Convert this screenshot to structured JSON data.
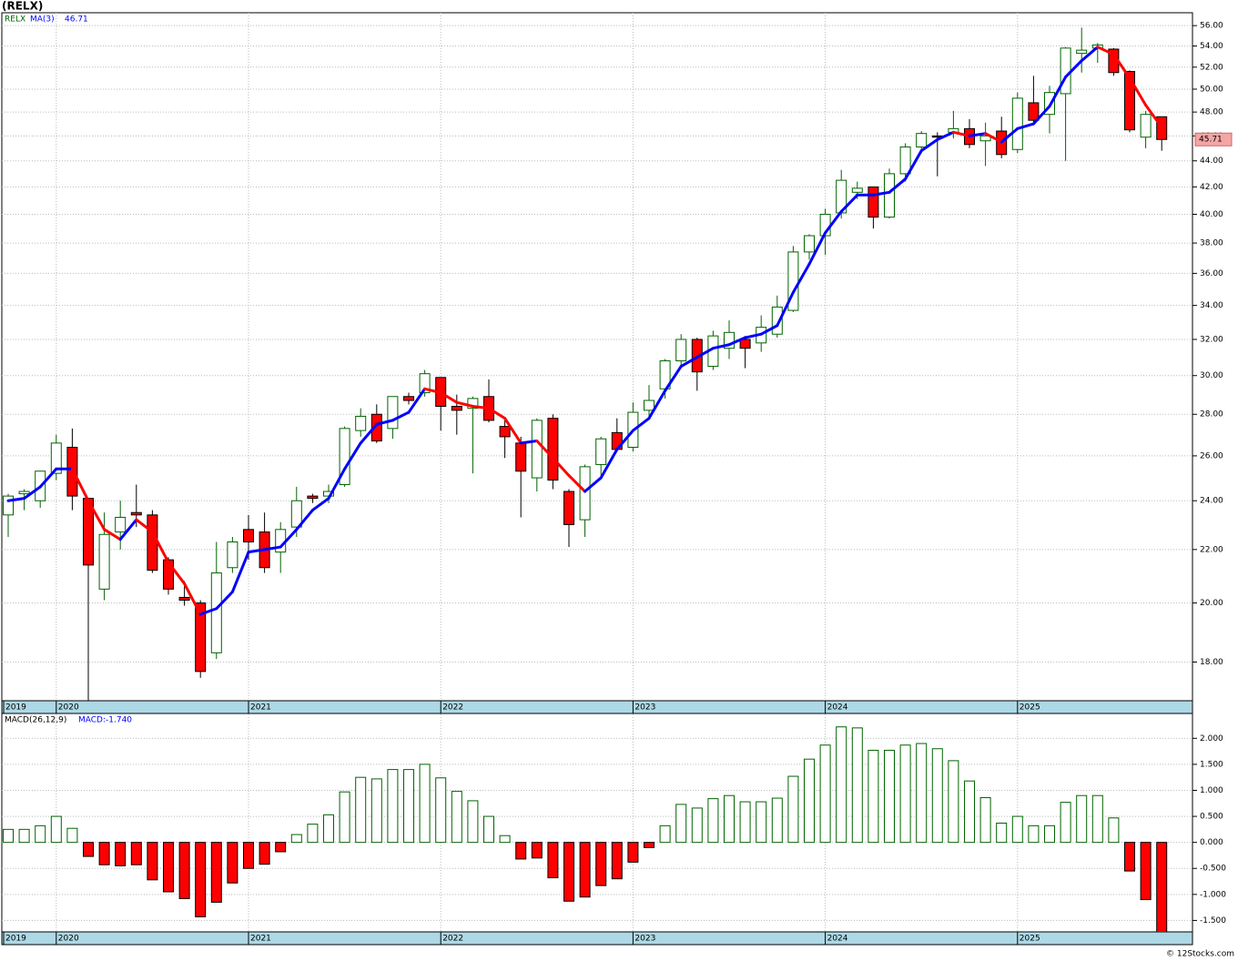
{
  "chart_data": [
    {
      "type": "candlestick",
      "title": "(RELX)",
      "log_scale": true,
      "grid": true,
      "categories": [
        "2019",
        null,
        null,
        "2020",
        null,
        null,
        null,
        null,
        null,
        null,
        null,
        null,
        null,
        null,
        null,
        "2021",
        null,
        null,
        null,
        null,
        null,
        null,
        null,
        null,
        null,
        null,
        null,
        "2022",
        null,
        null,
        null,
        null,
        null,
        null,
        null,
        null,
        null,
        null,
        null,
        "2023",
        null,
        null,
        null,
        null,
        null,
        null,
        null,
        null,
        null,
        null,
        null,
        "2024",
        null,
        null,
        null,
        null,
        null,
        null,
        null,
        null,
        null,
        null,
        null,
        "2025",
        null,
        null,
        null,
        null,
        null,
        null,
        null,
        null,
        null
      ],
      "series": [
        {
          "name": "RELX",
          "up_color": "#006400",
          "down_color": "#ff0000",
          "open": [
            23.4,
            24.3,
            24.0,
            25.2,
            26.4,
            24.1,
            20.5,
            22.7,
            23.5,
            23.4,
            21.6,
            20.2,
            20.0,
            18.3,
            21.3,
            22.8,
            22.7,
            21.9,
            22.9,
            24.2,
            24.2,
            24.7,
            27.2,
            28.0,
            27.3,
            28.9,
            29.1,
            29.9,
            28.4,
            28.3,
            28.9,
            27.4,
            26.6,
            25.0,
            27.8,
            24.4,
            23.2,
            25.6,
            27.1,
            26.4,
            28.2,
            29.3,
            30.8,
            32.0,
            30.5,
            31.5,
            32.0,
            31.8,
            32.3,
            33.7,
            37.4,
            38.5,
            40.1,
            41.6,
            42.0,
            39.8,
            43.0,
            45.1,
            46.0,
            46.3,
            46.6,
            45.6,
            46.4,
            44.9,
            48.8,
            47.8,
            49.6,
            53.3,
            53.8,
            53.7,
            51.6,
            45.9,
            47.6
          ],
          "high": [
            24.3,
            24.5,
            25.3,
            27.0,
            27.3,
            24.1,
            23.5,
            24.0,
            24.7,
            23.6,
            21.7,
            20.8,
            20.1,
            22.3,
            22.5,
            23.4,
            23.5,
            23.1,
            24.6,
            24.3,
            24.7,
            27.4,
            28.3,
            28.5,
            28.9,
            29.1,
            30.3,
            29.9,
            29.0,
            28.9,
            29.8,
            27.7,
            26.9,
            27.8,
            28.0,
            24.5,
            25.6,
            26.9,
            27.8,
            28.6,
            29.5,
            30.9,
            32.3,
            32.1,
            32.5,
            33.1,
            32.2,
            33.4,
            34.6,
            37.8,
            38.6,
            40.4,
            43.3,
            42.4,
            42.0,
            43.4,
            45.4,
            46.4,
            46.3,
            48.1,
            47.4,
            47.1,
            47.6,
            49.7,
            51.2,
            50.3,
            53.9,
            55.8,
            54.3,
            53.8,
            51.7,
            48.1,
            47.6
          ],
          "low": [
            22.5,
            23.6,
            23.7,
            24.9,
            23.6,
            16.8,
            20.1,
            22.0,
            22.9,
            21.1,
            20.3,
            19.9,
            17.5,
            18.1,
            21.1,
            21.6,
            21.1,
            21.1,
            22.5,
            23.9,
            23.9,
            24.6,
            26.9,
            26.6,
            26.8,
            28.5,
            28.9,
            27.2,
            27.0,
            25.2,
            27.6,
            25.9,
            23.3,
            24.4,
            24.5,
            22.1,
            22.5,
            25.0,
            26.2,
            26.2,
            27.9,
            28.8,
            30.5,
            29.2,
            30.3,
            30.9,
            30.4,
            31.3,
            32.1,
            33.6,
            36.9,
            37.2,
            39.7,
            41.1,
            39.0,
            39.7,
            42.4,
            44.6,
            42.8,
            45.8,
            45.0,
            43.6,
            44.2,
            44.6,
            47.1,
            46.2,
            44.0,
            51.5,
            52.4,
            51.2,
            46.3,
            45.0,
            44.8
          ],
          "close": [
            24.2,
            24.4,
            25.3,
            26.6,
            24.2,
            21.4,
            22.6,
            23.3,
            23.4,
            21.2,
            20.5,
            20.1,
            17.7,
            21.1,
            22.3,
            22.3,
            21.3,
            22.8,
            24.0,
            24.1,
            24.4,
            27.3,
            27.9,
            26.7,
            28.9,
            28.7,
            30.1,
            28.4,
            28.2,
            28.8,
            27.7,
            26.9,
            25.3,
            27.7,
            24.9,
            23.0,
            25.5,
            26.8,
            26.3,
            28.1,
            28.7,
            30.8,
            32.0,
            30.2,
            32.2,
            32.4,
            31.5,
            32.7,
            33.9,
            37.4,
            38.5,
            40.0,
            42.5,
            41.9,
            39.8,
            43.0,
            45.1,
            46.2,
            45.9,
            46.6,
            45.3,
            46.0,
            44.5,
            49.2,
            47.3,
            49.7,
            53.8,
            53.6,
            54.1,
            51.5,
            46.5,
            47.8,
            45.71
          ]
        }
      ],
      "ma": {
        "name": "MA(3)",
        "up_color": "#0000ff",
        "down_color": "#ff0000",
        "values": [
          24.0,
          24.1,
          24.6,
          25.4,
          25.4,
          24.0,
          22.8,
          22.4,
          23.2,
          22.7,
          21.5,
          20.7,
          19.6,
          19.8,
          20.4,
          21.9,
          22.0,
          22.1,
          22.8,
          23.6,
          24.1,
          25.4,
          26.6,
          27.5,
          27.7,
          28.1,
          29.3,
          29.1,
          28.6,
          28.4,
          28.3,
          27.8,
          26.6,
          26.7,
          25.9,
          25.1,
          24.4,
          25.0,
          26.3,
          27.2,
          27.8,
          29.2,
          30.5,
          31.0,
          31.5,
          31.7,
          32.1,
          32.3,
          32.8,
          34.8,
          36.6,
          38.7,
          40.2,
          41.4,
          41.4,
          41.6,
          42.6,
          44.8,
          45.7,
          46.3,
          46.0,
          46.2,
          45.5,
          46.6,
          47.0,
          48.5,
          51.1,
          52.6,
          53.9,
          53.2,
          51.0,
          48.6,
          46.71
        ]
      },
      "ylim": [
        16.8,
        57.3
      ],
      "yticks": [
        {
          "value": 18,
          "label": "18.00"
        },
        {
          "value": 20,
          "label": "20.00"
        },
        {
          "value": 22,
          "label": "22.00"
        },
        {
          "value": 24,
          "label": "24.00"
        },
        {
          "value": 26,
          "label": "26.00"
        },
        {
          "value": 28,
          "label": "28.00"
        },
        {
          "value": 30,
          "label": "30.00"
        },
        {
          "value": 32,
          "label": "32.00"
        },
        {
          "value": 34,
          "label": "34.00"
        },
        {
          "value": 36,
          "label": "36.00"
        },
        {
          "value": 38,
          "label": "38.00"
        },
        {
          "value": 40,
          "label": "40.00"
        },
        {
          "value": 42,
          "label": "42.00"
        },
        {
          "value": 44,
          "label": "44.00"
        },
        {
          "value": 46,
          "label": "46.00"
        },
        {
          "value": 48,
          "label": "48.00"
        },
        {
          "value": 50,
          "label": "50.00"
        },
        {
          "value": 52,
          "label": "52.00"
        },
        {
          "value": 54,
          "label": "54.00"
        },
        {
          "value": 56,
          "label": "56.00"
        }
      ]
    },
    {
      "type": "histogram",
      "name": "MACD(26,12,9)",
      "macd_label": "MACD:-1.740",
      "up_color": "#006400",
      "down_color": "#ff0000",
      "values": [
        0.25,
        0.25,
        0.32,
        0.5,
        0.27,
        -0.27,
        -0.43,
        -0.45,
        -0.43,
        -0.72,
        -0.95,
        -1.08,
        -1.43,
        -1.15,
        -0.78,
        -0.5,
        -0.42,
        -0.18,
        0.15,
        0.35,
        0.53,
        0.97,
        1.25,
        1.22,
        1.4,
        1.4,
        1.5,
        1.24,
        0.98,
        0.8,
        0.5,
        0.13,
        -0.32,
        -0.3,
        -0.68,
        -1.13,
        -1.05,
        -0.83,
        -0.7,
        -0.38,
        -0.1,
        0.32,
        0.73,
        0.66,
        0.84,
        0.9,
        0.78,
        0.78,
        0.85,
        1.27,
        1.6,
        1.87,
        2.22,
        2.2,
        1.77,
        1.77,
        1.87,
        1.9,
        1.8,
        1.57,
        1.18,
        0.86,
        0.37,
        0.5,
        0.32,
        0.32,
        0.77,
        0.9,
        0.9,
        0.47,
        -0.55,
        -1.1,
        -1.74
      ],
      "ylim": [
        -1.72,
        2.46
      ],
      "yticks": [
        {
          "value": -1.5,
          "label": "-1.500"
        },
        {
          "value": -1,
          "label": "-1.000"
        },
        {
          "value": -0.5,
          "label": "-0.500"
        },
        {
          "value": 0,
          "label": "0.000"
        },
        {
          "value": 0.5,
          "label": "0.500"
        },
        {
          "value": 1,
          "label": "1.000"
        },
        {
          "value": 1.5,
          "label": "1.500"
        },
        {
          "value": 2,
          "label": "2.000"
        }
      ]
    }
  ],
  "footer": "© 12Stocks.com"
}
